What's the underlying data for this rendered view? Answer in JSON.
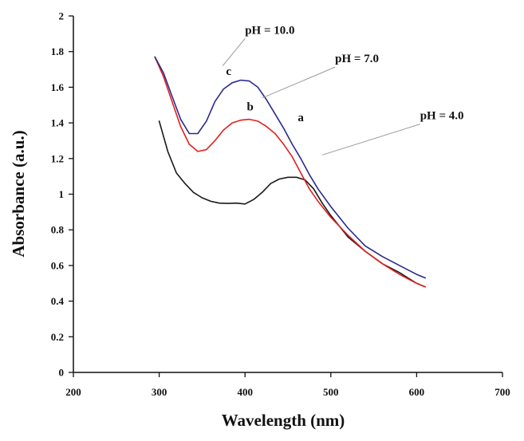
{
  "chart_data": {
    "type": "line",
    "title": "",
    "xlabel": "Wavelength (nm)",
    "ylabel": "Absorbance (a.u.)",
    "xlim": [
      200,
      700
    ],
    "ylim": [
      0,
      2
    ],
    "x_ticks": [
      200,
      300,
      400,
      500,
      600,
      700
    ],
    "y_ticks": [
      0,
      0.2,
      0.4,
      0.6,
      0.8,
      1,
      1.2,
      1.4,
      1.6,
      1.8,
      2
    ],
    "x_tick_labels": [
      "200",
      "300",
      "400",
      "500",
      "600",
      "700"
    ],
    "y_tick_labels": [
      "0",
      "0.2",
      "0.4",
      "0.6",
      "0.8",
      "1",
      "1.2",
      "1.4",
      "1.6",
      "1.8",
      "2"
    ],
    "grid": false,
    "series": [
      {
        "name": "pH = 4.0",
        "letter": "a",
        "color": "#1a1a1a",
        "points": [
          [
            300,
            1.41
          ],
          [
            310,
            1.24
          ],
          [
            320,
            1.12
          ],
          [
            330,
            1.06
          ],
          [
            340,
            1.01
          ],
          [
            350,
            0.98
          ],
          [
            360,
            0.96
          ],
          [
            370,
            0.95
          ],
          [
            380,
            0.948
          ],
          [
            390,
            0.95
          ],
          [
            400,
            0.945
          ],
          [
            410,
            0.97
          ],
          [
            420,
            1.01
          ],
          [
            430,
            1.06
          ],
          [
            440,
            1.085
          ],
          [
            450,
            1.095
          ],
          [
            460,
            1.095
          ],
          [
            470,
            1.08
          ],
          [
            480,
            1.03
          ],
          [
            490,
            0.95
          ],
          [
            500,
            0.88
          ],
          [
            520,
            0.76
          ],
          [
            540,
            0.68
          ],
          [
            560,
            0.61
          ],
          [
            580,
            0.56
          ],
          [
            600,
            0.5
          ],
          [
            610,
            0.48
          ]
        ]
      },
      {
        "name": "pH = 7.0",
        "letter": "b",
        "color": "#e02020",
        "points": [
          [
            295,
            1.77
          ],
          [
            305,
            1.66
          ],
          [
            315,
            1.52
          ],
          [
            325,
            1.38
          ],
          [
            335,
            1.28
          ],
          [
            345,
            1.24
          ],
          [
            355,
            1.25
          ],
          [
            365,
            1.3
          ],
          [
            375,
            1.36
          ],
          [
            385,
            1.4
          ],
          [
            395,
            1.415
          ],
          [
            405,
            1.42
          ],
          [
            415,
            1.41
          ],
          [
            425,
            1.38
          ],
          [
            435,
            1.34
          ],
          [
            445,
            1.28
          ],
          [
            455,
            1.21
          ],
          [
            465,
            1.12
          ],
          [
            475,
            1.03
          ],
          [
            485,
            0.96
          ],
          [
            500,
            0.87
          ],
          [
            520,
            0.77
          ],
          [
            540,
            0.68
          ],
          [
            560,
            0.61
          ],
          [
            580,
            0.55
          ],
          [
            600,
            0.5
          ],
          [
            610,
            0.48
          ]
        ]
      },
      {
        "name": "pH = 10.0",
        "letter": "c",
        "color": "#2a2a8c",
        "points": [
          [
            295,
            1.77
          ],
          [
            305,
            1.68
          ],
          [
            315,
            1.55
          ],
          [
            325,
            1.42
          ],
          [
            335,
            1.34
          ],
          [
            345,
            1.34
          ],
          [
            355,
            1.41
          ],
          [
            365,
            1.52
          ],
          [
            375,
            1.59
          ],
          [
            385,
            1.625
          ],
          [
            395,
            1.64
          ],
          [
            405,
            1.635
          ],
          [
            415,
            1.6
          ],
          [
            425,
            1.53
          ],
          [
            435,
            1.45
          ],
          [
            445,
            1.37
          ],
          [
            455,
            1.28
          ],
          [
            465,
            1.2
          ],
          [
            475,
            1.11
          ],
          [
            485,
            1.03
          ],
          [
            500,
            0.93
          ],
          [
            520,
            0.81
          ],
          [
            540,
            0.71
          ],
          [
            560,
            0.65
          ],
          [
            580,
            0.6
          ],
          [
            600,
            0.55
          ],
          [
            610,
            0.53
          ]
        ]
      }
    ],
    "annotations": [
      {
        "label": "pH = 10.0",
        "series": "c",
        "anchor": [
          400,
          1.9
        ],
        "target": [
          374,
          1.72
        ]
      },
      {
        "label": "pH = 7.0",
        "series": "b",
        "anchor": [
          505,
          1.74
        ],
        "target": [
          420,
          1.54
        ]
      },
      {
        "label": "pH = 4.0",
        "series": "a",
        "anchor": [
          604,
          1.42
        ],
        "target": [
          490,
          1.22
        ]
      }
    ],
    "letter_labels": [
      {
        "letter": "a",
        "x": 465,
        "y": 1.41
      },
      {
        "letter": "b",
        "x": 406,
        "y": 1.47
      },
      {
        "letter": "c",
        "x": 381,
        "y": 1.67
      }
    ]
  }
}
